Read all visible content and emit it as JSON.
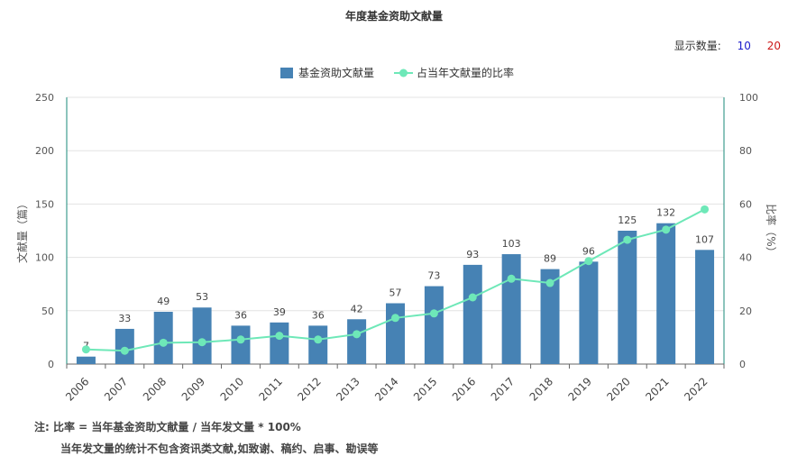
{
  "title": "年度基金资助文献量",
  "display": {
    "label": "显示数量:",
    "options": [
      "10",
      "20"
    ],
    "colors": [
      "#1a1acc",
      "#cc1a1a"
    ]
  },
  "notes": {
    "line1": "注:  比率 = 当年基金资助文献量 / 当年发文量 * 100%",
    "line2": "当年发文量的统计不包含资讯类文献,如致谢、稿约、启事、勘误等"
  },
  "chart_data": {
    "type": "bar",
    "categories": [
      "2006",
      "2007",
      "2008",
      "2009",
      "2010",
      "2011",
      "2012",
      "2013",
      "2014",
      "2015",
      "2016",
      "2017",
      "2018",
      "2019",
      "2020",
      "2021",
      "2022"
    ],
    "series": [
      {
        "name": "基金资助文献量",
        "type": "bar",
        "axis": "left",
        "color": "#4682b4",
        "values": [
          7,
          33,
          49,
          53,
          36,
          39,
          36,
          42,
          57,
          73,
          93,
          103,
          89,
          96,
          125,
          132,
          107
        ]
      },
      {
        "name": "占当年文献量的比率",
        "type": "line",
        "axis": "right",
        "color": "#6ee8b8",
        "values": [
          5.5,
          5,
          8,
          8.2,
          9.2,
          10.6,
          9.2,
          11.2,
          17.3,
          19,
          25,
          32,
          30.4,
          38.6,
          46.6,
          50.4,
          58
        ]
      }
    ],
    "ylabel": "文献量（篇）",
    "y2label": "比率（%）",
    "ylim": [
      0,
      250
    ],
    "y2lim": [
      0,
      100
    ],
    "yticks": [
      0,
      50,
      100,
      150,
      200,
      250
    ],
    "y2ticks": [
      0,
      20,
      40,
      60,
      80,
      100
    ],
    "grid": true,
    "legend": "top-center"
  }
}
